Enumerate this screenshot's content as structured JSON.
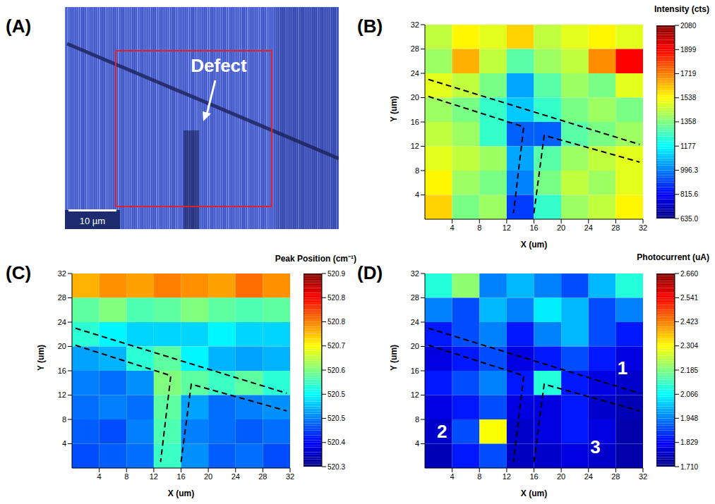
{
  "chart_data": [
    {
      "type": "image",
      "panel": "(A)",
      "annotation": "Defect",
      "scale_bar": "10 µm"
    },
    {
      "type": "heatmap",
      "panel": "(B)",
      "x_label": "X (um)",
      "y_label": "Y (um)",
      "xlim": [
        0,
        32
      ],
      "ylim": [
        0,
        32
      ],
      "xticks": [
        4,
        8,
        12,
        16,
        20,
        24,
        28,
        32
      ],
      "yticks": [
        4,
        8,
        12,
        16,
        20,
        24,
        28,
        32
      ],
      "x_edges": [
        0,
        4,
        8,
        12,
        16,
        20,
        24,
        28,
        32
      ],
      "y_edges": [
        32,
        28,
        24,
        20,
        16,
        12,
        8,
        4,
        0
      ],
      "cells": [
        [
          1450,
          1550,
          1500,
          1600,
          1450,
          1500,
          1550,
          1500
        ],
        [
          1400,
          1650,
          1450,
          1300,
          1400,
          1450,
          1700,
          1900
        ],
        [
          1500,
          1450,
          1350,
          1050,
          1300,
          1400,
          1350,
          1500
        ],
        [
          1400,
          1350,
          1250,
          1100,
          1250,
          1350,
          1400,
          1350
        ],
        [
          1450,
          1400,
          1250,
          950,
          950,
          1300,
          1350,
          1400
        ],
        [
          1500,
          1450,
          1400,
          1050,
          1300,
          1400,
          1450,
          1500
        ],
        [
          1550,
          1400,
          1350,
          1000,
          1350,
          1450,
          1400,
          1500
        ],
        [
          1600,
          1350,
          1400,
          900,
          1250,
          1400,
          1450,
          1550
        ]
      ],
      "colorbar_label": "Intensity (cts)",
      "colorbar_lim": [
        635,
        2080
      ],
      "colorbar_ticks": [
        2080,
        1899,
        1719,
        1538,
        1358,
        1177,
        996.3,
        815.6,
        {
          "value": 635,
          "label": "635.0"
        }
      ],
      "line_style": "dashed",
      "outlines": [
        [
          [
            0.5,
            23
          ],
          [
            31.5,
            12.3
          ]
        ],
        [
          [
            0.5,
            20.2
          ],
          [
            14.5,
            15.2
          ],
          [
            13,
            1
          ]
        ],
        [
          [
            16,
            1
          ],
          [
            17.5,
            13.8
          ],
          [
            31.5,
            9.4
          ]
        ]
      ]
    },
    {
      "type": "heatmap",
      "panel": "(C)",
      "x_label": "X (um)",
      "y_label": "Y (um)",
      "xlim": [
        0,
        32
      ],
      "ylim": [
        0,
        32
      ],
      "xticks": [
        4,
        8,
        12,
        16,
        20,
        24,
        28,
        32
      ],
      "yticks": [
        4,
        8,
        12,
        16,
        20,
        24,
        28,
        32
      ],
      "x_edges": [
        0,
        4,
        8,
        12,
        16,
        20,
        24,
        28,
        32
      ],
      "y_edges": [
        32,
        28,
        24,
        20,
        16,
        12,
        8,
        4,
        0
      ],
      "cells": [
        [
          520.72,
          520.74,
          520.73,
          520.75,
          520.74,
          520.73,
          520.76,
          520.74
        ],
        [
          520.58,
          520.6,
          520.57,
          520.58,
          520.6,
          520.58,
          520.57,
          520.58
        ],
        [
          520.55,
          520.52,
          520.5,
          520.5,
          520.5,
          520.52,
          520.5,
          520.5
        ],
        [
          520.47,
          520.48,
          520.55,
          520.58,
          520.52,
          520.48,
          520.47,
          520.48
        ],
        [
          520.45,
          520.44,
          520.46,
          520.6,
          520.58,
          520.56,
          520.58,
          520.55
        ],
        [
          520.44,
          520.45,
          520.44,
          520.58,
          520.47,
          520.44,
          520.45,
          520.46
        ],
        [
          520.43,
          520.42,
          520.45,
          520.57,
          520.45,
          520.44,
          520.43,
          520.44
        ],
        [
          520.42,
          520.43,
          520.44,
          520.56,
          520.46,
          520.43,
          520.44,
          520.42
        ]
      ],
      "colorbar_label": "Peak Position (cm⁻¹)",
      "colorbar_lim": [
        520.3,
        520.9
      ],
      "colorbar_ticks": [
        {
          "value": 520.9,
          "label": "520.9"
        },
        {
          "value": 520.825,
          "label": "520.8"
        },
        {
          "value": 520.75,
          "label": "520.8"
        },
        {
          "value": 520.675,
          "label": "520.7"
        },
        {
          "value": 520.6,
          "label": "520.6"
        },
        {
          "value": 520.525,
          "label": "520.5"
        },
        {
          "value": 520.45,
          "label": "520.5"
        },
        {
          "value": 520.375,
          "label": "520.4"
        },
        {
          "value": 520.3,
          "label": "520.3"
        }
      ],
      "line_style": "dashed",
      "outlines": [
        [
          [
            0.5,
            23
          ],
          [
            31.5,
            12.3
          ]
        ],
        [
          [
            0.5,
            20.2
          ],
          [
            14.5,
            15.2
          ],
          [
            13,
            1
          ]
        ],
        [
          [
            16,
            1
          ],
          [
            17.5,
            13.8
          ],
          [
            31.5,
            9.4
          ]
        ]
      ]
    },
    {
      "type": "heatmap",
      "panel": "(D)",
      "x_label": "X (um)",
      "y_label": "Y (um)",
      "xlim": [
        0,
        32
      ],
      "ylim": [
        0,
        32
      ],
      "xticks": [
        4,
        8,
        12,
        16,
        20,
        24,
        28,
        32
      ],
      "yticks": [
        4,
        8,
        12,
        16,
        20,
        24,
        28,
        32
      ],
      "x_edges": [
        0,
        4,
        8,
        12,
        16,
        20,
        24,
        28,
        32
      ],
      "y_edges": [
        32,
        28,
        24,
        20,
        16,
        12,
        8,
        4,
        0
      ],
      "cells": [
        [
          2.1,
          2.2,
          1.95,
          2.0,
          1.95,
          1.9,
          2.0,
          2.1
        ],
        [
          1.95,
          1.9,
          2.0,
          1.95,
          2.05,
          2.0,
          1.9,
          1.95
        ],
        [
          1.85,
          1.9,
          1.95,
          1.85,
          1.95,
          2.0,
          1.9,
          1.85
        ],
        [
          1.8,
          1.85,
          1.9,
          1.8,
          1.85,
          1.9,
          1.85,
          1.8
        ],
        [
          1.85,
          1.9,
          1.95,
          1.85,
          2.1,
          1.85,
          1.8,
          1.78
        ],
        [
          1.8,
          1.85,
          1.9,
          1.8,
          1.8,
          1.85,
          1.78,
          1.76
        ],
        [
          1.78,
          1.9,
          2.3,
          1.78,
          1.8,
          1.85,
          1.8,
          1.75
        ],
        [
          1.76,
          1.85,
          1.9,
          1.77,
          1.78,
          1.8,
          1.78,
          1.75
        ]
      ],
      "colorbar_label": "Photocurrent (uA)",
      "colorbar_lim": [
        1.71,
        2.66
      ],
      "colorbar_ticks": [
        {
          "value": 2.66,
          "label": "2.660"
        },
        2.541,
        2.423,
        2.304,
        2.185,
        2.066,
        1.948,
        1.829,
        {
          "value": 1.71,
          "label": "1.710"
        }
      ],
      "line_style": "dashed",
      "outlines": [
        [
          [
            0.5,
            23
          ],
          [
            31.5,
            12.3
          ]
        ],
        [
          [
            0.5,
            20.2
          ],
          [
            14.5,
            15.2
          ],
          [
            13,
            1
          ]
        ],
        [
          [
            16,
            1
          ],
          [
            17.5,
            13.8
          ],
          [
            31.5,
            9.4
          ]
        ]
      ],
      "annotations": [
        {
          "text": "1",
          "x": 29,
          "y": 16.5
        },
        {
          "text": "2",
          "x": 2.5,
          "y": 6
        },
        {
          "text": "3",
          "x": 25,
          "y": 3.5
        }
      ]
    }
  ]
}
